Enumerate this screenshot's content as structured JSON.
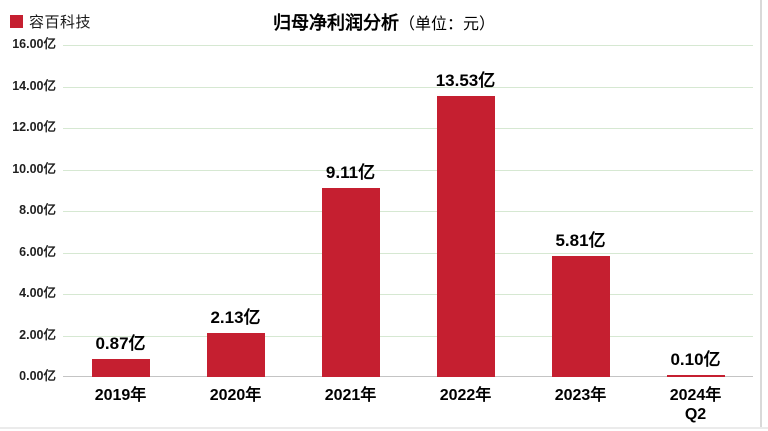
{
  "header": {
    "legend_label": "容百科技",
    "title": "归母净利润分析",
    "title_unit": "（单位：元）"
  },
  "chart_data": {
    "type": "bar",
    "title": "归母净利润分析（单位：元）",
    "legend": [
      "容百科技"
    ],
    "legend_position": "top-left",
    "categories": [
      "2019年",
      "2020年",
      "2021年",
      "2022年",
      "2023年",
      "2024年\nQ2"
    ],
    "values": [
      0.87,
      2.13,
      9.11,
      13.53,
      5.81,
      0.1
    ],
    "value_labels": [
      "0.87亿",
      "2.13亿",
      "9.11亿",
      "13.53亿",
      "5.81亿",
      "0.10亿"
    ],
    "xlabel": "",
    "ylabel": "",
    "ylim": [
      0,
      16
    ],
    "y_ticks": [
      {
        "v": 0,
        "label": "0.00亿"
      },
      {
        "v": 2,
        "label": "2.00亿"
      },
      {
        "v": 4,
        "label": "4.00亿"
      },
      {
        "v": 6,
        "label": "6.00亿"
      },
      {
        "v": 8,
        "label": "8.00亿"
      },
      {
        "v": 10,
        "label": "10.00亿"
      },
      {
        "v": 12,
        "label": "12.00亿"
      },
      {
        "v": 14,
        "label": "14.00亿"
      },
      {
        "v": 16,
        "label": "16.00亿"
      }
    ],
    "grid": true,
    "colors": {
      "bar": "#C51F30",
      "grid": "#D6E8D2",
      "baseline": "#C4C4C4",
      "text": "#000000",
      "frame": "#D9D9D9"
    }
  }
}
